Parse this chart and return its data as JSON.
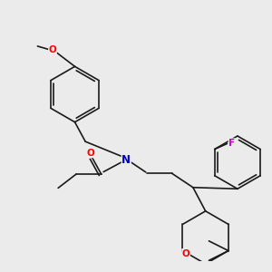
{
  "background_color": "#ebebeb",
  "bond_color": "#1a1a1a",
  "atom_colors": {
    "N": "#0000cc",
    "O": "#ff0000",
    "F": "#cc00cc"
  },
  "fig_size": [
    3.0,
    3.0
  ],
  "dpi": 100
}
